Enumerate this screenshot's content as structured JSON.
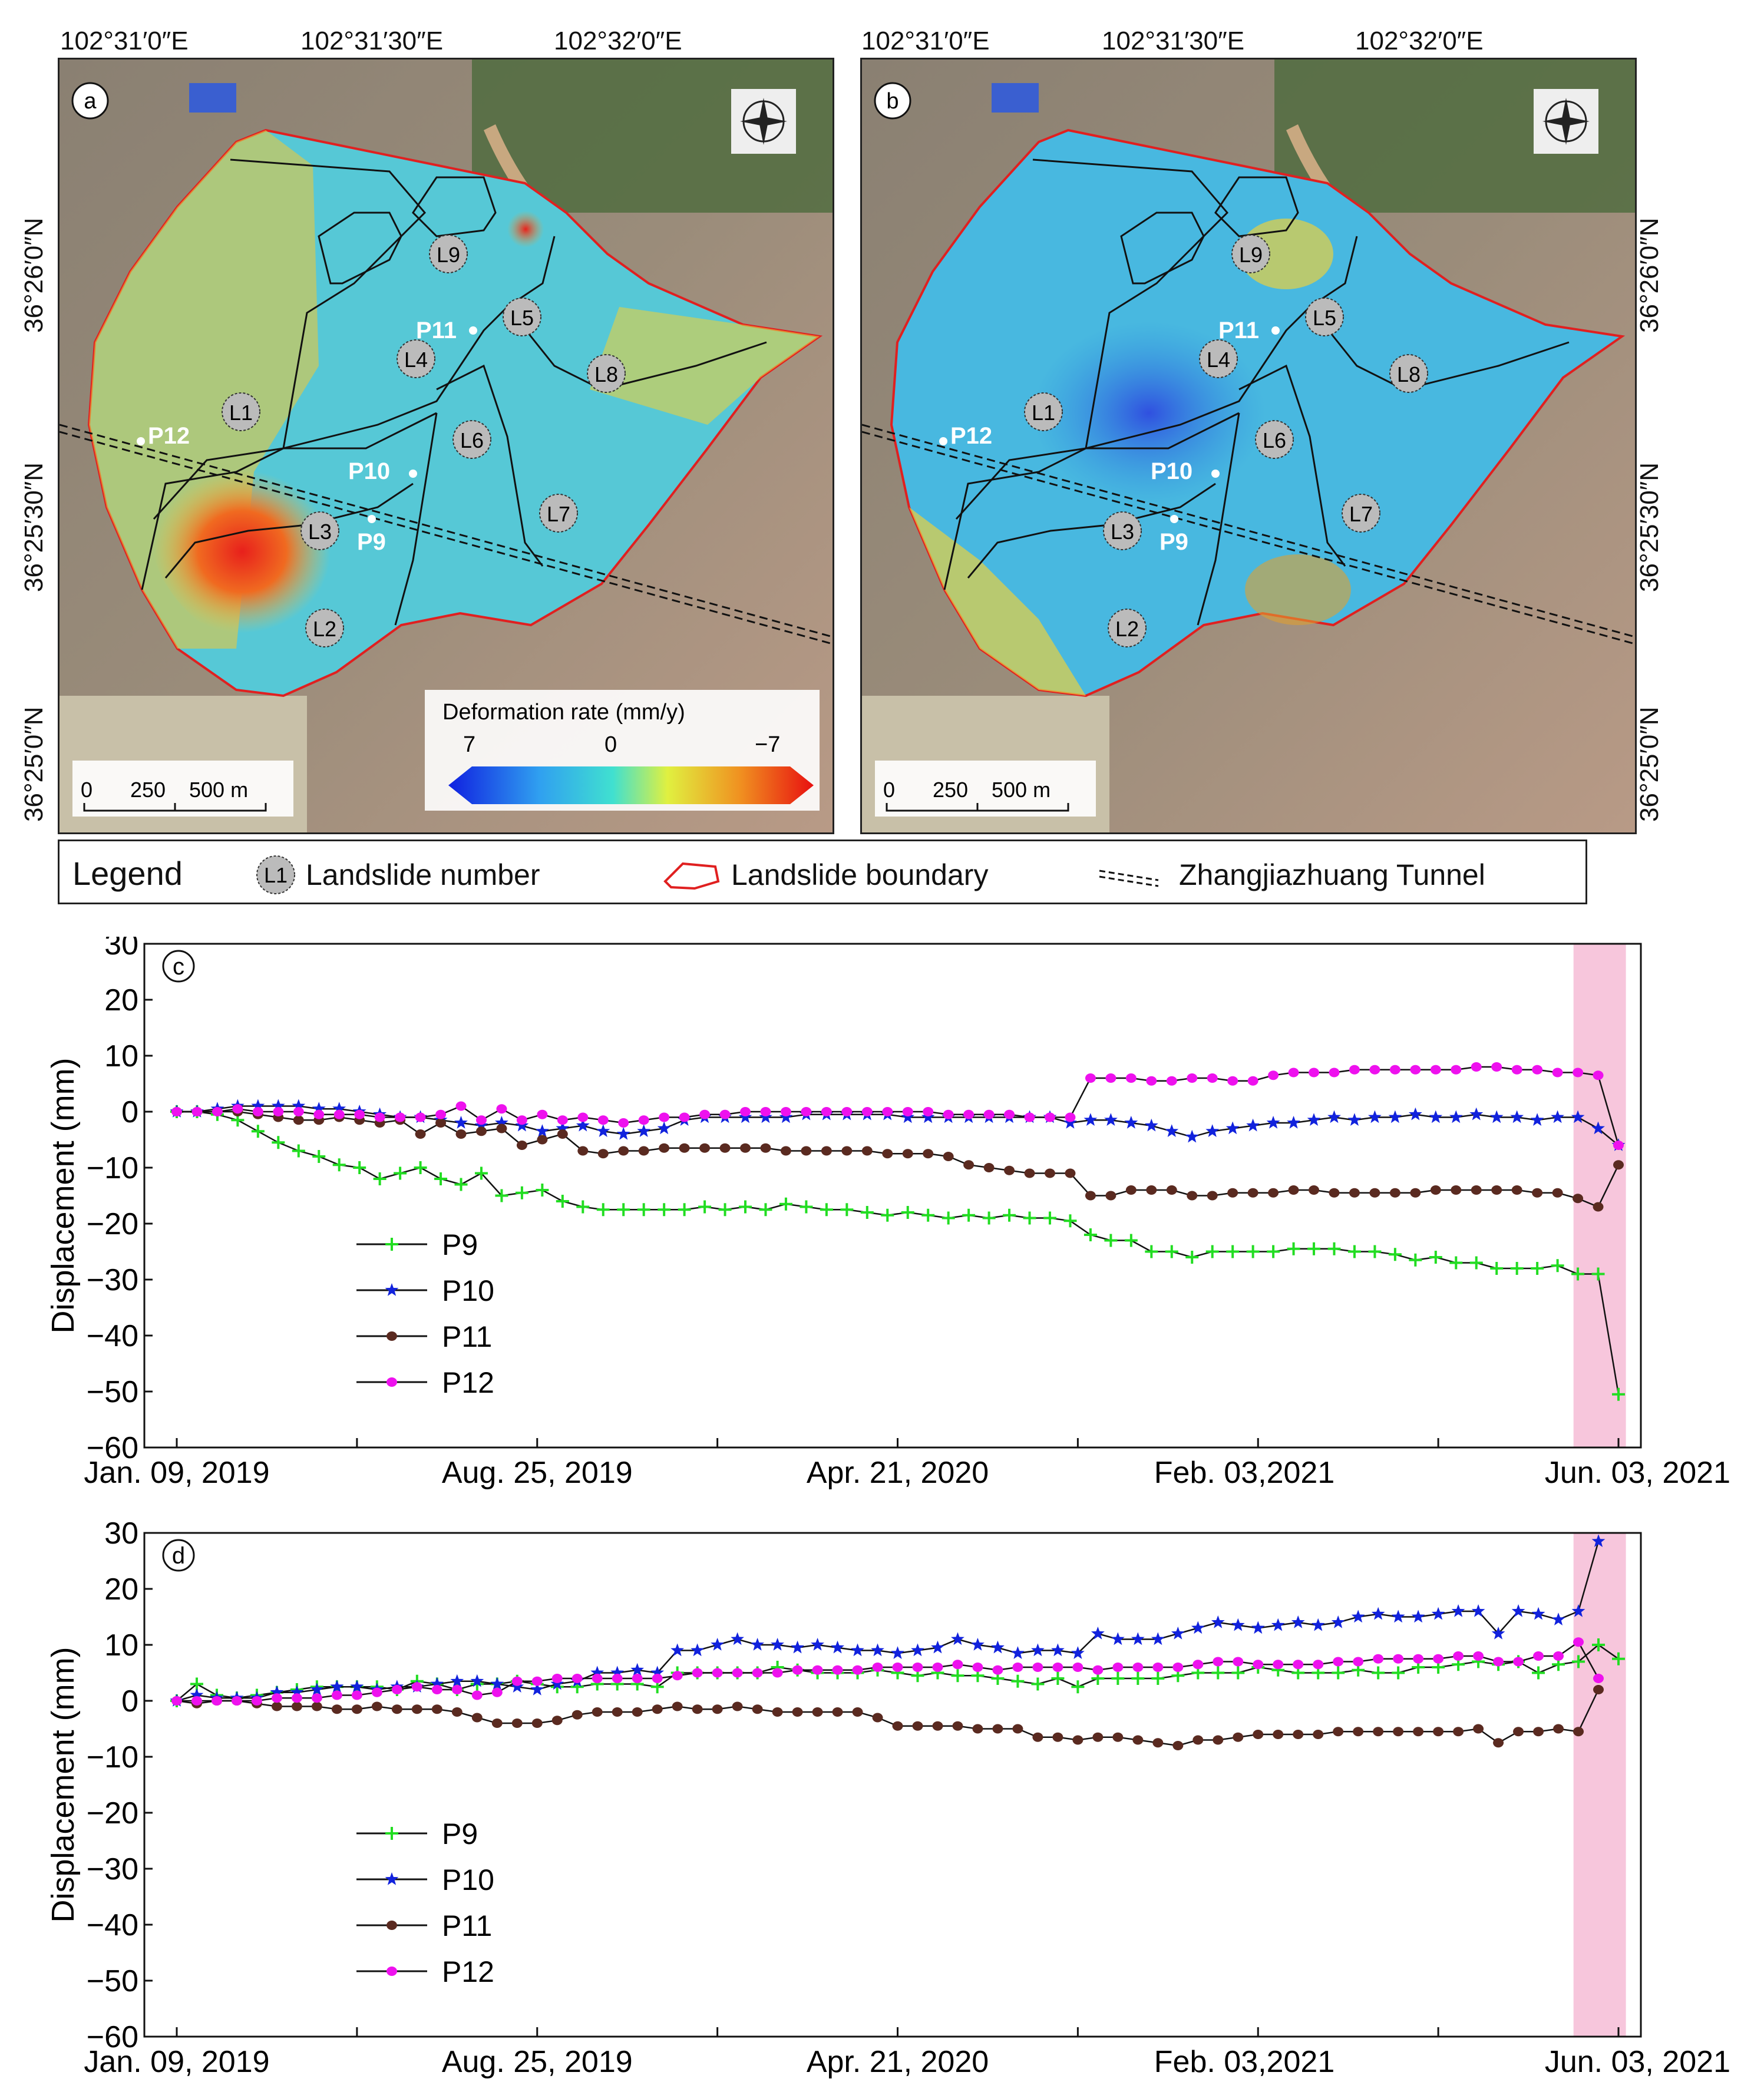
{
  "maps": {
    "top_coords": [
      "102°31′0″E",
      "102°31′30″E",
      "102°32′0″E"
    ],
    "side_coords": [
      "36°26′0″N",
      "36°25′30″N",
      "36°25′0″N"
    ],
    "panel_a": {
      "label": "a",
      "landslides": [
        "L1",
        "L2",
        "L3",
        "L4",
        "L5",
        "L6",
        "L7",
        "L8",
        "L9"
      ],
      "points": [
        "P9",
        "P10",
        "P11",
        "P12"
      ]
    },
    "panel_b": {
      "label": "b",
      "landslides": [
        "L1",
        "L2",
        "L3",
        "L4",
        "L5",
        "L6",
        "L7",
        "L8",
        "L9"
      ],
      "points": [
        "P9",
        "P10",
        "P11",
        "P12"
      ]
    },
    "scale_bar": [
      "0",
      "250",
      "500 m"
    ],
    "colorbar": {
      "title": "Deformation rate  (mm/y)",
      "ticks": [
        "7",
        "0",
        "−7"
      ]
    }
  },
  "legend": {
    "title": "Legend",
    "landslide_symbol": "L1",
    "landslide_number": "Landslide number",
    "landslide_boundary": "Landslide boundary",
    "tunnel": "Zhangjiazhuang Tunnel"
  },
  "chart_data": [
    {
      "type": "line",
      "label": "c",
      "ylabel": "Displacement (mm)",
      "xlabel": "",
      "ylim": [
        -60,
        30
      ],
      "yticks": [
        "30",
        "20",
        "10",
        "0",
        "−10",
        "−20",
        "−30",
        "−40",
        "−50",
        "−60"
      ],
      "xtick_labels": [
        "Jan. 09, 2019",
        "Aug. 25, 2019",
        "Apr. 21, 2020",
        "Feb. 03,2021",
        "Jun. 03, 2021"
      ],
      "highlight": {
        "from": 0.955,
        "to": 0.99,
        "color": "#f7c6dc"
      },
      "series": [
        {
          "name": "P9",
          "color": "#22dd22",
          "marker": "plus",
          "values": [
            0,
            0,
            -0.5,
            -1.5,
            -3.5,
            -5.5,
            -7,
            -8,
            -9.5,
            -10,
            -12,
            -11,
            -10,
            -12,
            -13,
            -11,
            -15,
            -14.5,
            -14,
            -16,
            -17,
            -17.5,
            -17.5,
            -17.5,
            -17.5,
            -17.5,
            -17,
            -17.5,
            -17,
            -17.5,
            -16.5,
            -17,
            -17.5,
            -17.5,
            -18,
            -18.5,
            -18,
            -18.5,
            -19,
            -18.5,
            -19,
            -18.5,
            -19,
            -19,
            -19.5,
            -22,
            -23,
            -23,
            -25,
            -25,
            -26,
            -25,
            -25,
            -25,
            -25,
            -24.5,
            -24.5,
            -24.5,
            -25,
            -25,
            -25.5,
            -26.5,
            -26,
            -27,
            -27,
            -28,
            -28,
            -28,
            -27.5,
            -29,
            -29,
            -50.5
          ]
        },
        {
          "name": "P10",
          "color": "#1122dd",
          "marker": "star",
          "values": [
            0,
            0,
            0.5,
            1,
            1,
            1,
            1,
            0.5,
            0.5,
            0,
            -0.5,
            -1,
            -1,
            -1.5,
            -2,
            -2.5,
            -2,
            -2.5,
            -3.5,
            -3,
            -2.5,
            -3.5,
            -4,
            -3.5,
            -3,
            -1.5,
            -1,
            -1,
            -1,
            -1,
            -1,
            -0.5,
            -0.5,
            -0.5,
            -0.5,
            -0.5,
            -1,
            -1,
            -1,
            -1,
            -1,
            -1,
            -1,
            -1,
            -2,
            -1.5,
            -1.5,
            -2,
            -2.5,
            -3.5,
            -4.5,
            -3.5,
            -3,
            -2.5,
            -2,
            -2,
            -1.5,
            -1,
            -1.5,
            -1,
            -1,
            -0.5,
            -1,
            -1,
            -0.5,
            -1,
            -1,
            -1.5,
            -1,
            -1,
            -3,
            -6
          ]
        },
        {
          "name": "P11",
          "color": "#5a2a20",
          "marker": "circle",
          "values": [
            0,
            0,
            0,
            0,
            -0.5,
            -1,
            -1.5,
            -1.5,
            -1,
            -1.5,
            -2,
            -1.5,
            -4,
            -2,
            -4,
            -3.5,
            -3,
            -6,
            -5,
            -4,
            -7,
            -7.5,
            -7,
            -7,
            -6.5,
            -6.5,
            -6.5,
            -6.5,
            -6.5,
            -6.5,
            -7,
            -7,
            -7,
            -7,
            -7,
            -7.5,
            -7.5,
            -7.5,
            -8,
            -9.5,
            -10,
            -10.5,
            -11,
            -11,
            -11,
            -15,
            -15,
            -14,
            -14,
            -14,
            -15,
            -15,
            -14.5,
            -14.5,
            -14.5,
            -14,
            -14,
            -14.5,
            -14.5,
            -14.5,
            -14.5,
            -14.5,
            -14,
            -14,
            -14,
            -14,
            -14,
            -14.5,
            -14.5,
            -15.5,
            -17,
            -9.5
          ]
        },
        {
          "name": "P12",
          "color": "#ee11ee",
          "marker": "circle",
          "values": [
            0,
            0,
            0,
            0.5,
            0,
            0,
            0,
            -0.5,
            -0.5,
            -0.5,
            -1,
            -1,
            -1,
            -0.5,
            1,
            -1.5,
            0.5,
            -1.5,
            -0.5,
            -1.5,
            -1,
            -1.5,
            -2,
            -1.5,
            -1,
            -1,
            -0.5,
            -0.5,
            0,
            0,
            0,
            0,
            0,
            0,
            0,
            0,
            0,
            0,
            -0.5,
            -0.5,
            -0.5,
            -0.5,
            -1,
            -1,
            -1,
            6,
            6,
            6,
            5.5,
            5.5,
            6,
            6,
            5.5,
            5.5,
            6.5,
            7,
            7,
            7,
            7.5,
            7.5,
            7.5,
            7.5,
            7.5,
            7.5,
            8,
            8,
            7.5,
            7.5,
            7,
            7,
            6.5,
            -6
          ]
        }
      ]
    },
    {
      "type": "line",
      "label": "d",
      "ylabel": "Displacement (mm)",
      "xlabel": "",
      "ylim": [
        -60,
        30
      ],
      "yticks": [
        "30",
        "20",
        "10",
        "0",
        "−10",
        "−20",
        "−30",
        "−40",
        "−50",
        "−60"
      ],
      "xtick_labels": [
        "Jan. 09, 2019",
        "Aug. 25, 2019",
        "Apr. 21, 2020",
        "Feb. 03,2021",
        "Jun. 03, 2021"
      ],
      "highlight": {
        "from": 0.955,
        "to": 0.99,
        "color": "#f7c6dc"
      },
      "series": [
        {
          "name": "P9",
          "color": "#22dd22",
          "marker": "plus",
          "values": [
            0,
            3,
            1,
            0.5,
            1,
            1.5,
            2,
            2.5,
            2.5,
            2.5,
            2.5,
            2,
            3.5,
            3,
            2,
            3,
            3,
            3.5,
            3,
            2.5,
            2.5,
            3,
            3,
            3,
            2.5,
            5,
            5,
            5,
            5,
            5,
            6,
            5.5,
            5,
            5,
            5,
            5.5,
            5,
            4.5,
            5,
            4.5,
            4.5,
            4,
            3.5,
            3,
            4,
            2.5,
            4,
            4,
            4,
            4,
            4.5,
            5,
            5,
            5,
            6,
            5.5,
            5,
            5,
            5,
            5.5,
            5,
            5,
            6,
            6,
            6.5,
            7,
            6.5,
            7,
            5,
            6.5,
            7,
            10,
            7.5
          ]
        },
        {
          "name": "P10",
          "color": "#1122dd",
          "marker": "star",
          "values": [
            0,
            1,
            0.5,
            0.5,
            0.5,
            1.5,
            1.5,
            2,
            2.5,
            2.5,
            2,
            2.5,
            2.5,
            3,
            3.5,
            3.5,
            3,
            2.5,
            2,
            3,
            3.5,
            5,
            5,
            5.5,
            5,
            9,
            9,
            10,
            11,
            10,
            10,
            9.5,
            10,
            9.5,
            9,
            9,
            8.5,
            9,
            9.5,
            11,
            10,
            9.5,
            8.5,
            9,
            9,
            8.5,
            12,
            11,
            11,
            11,
            12,
            13,
            14,
            13.5,
            13,
            13.5,
            14,
            13.5,
            14,
            15,
            15.5,
            15,
            15,
            15.5,
            16,
            16,
            12,
            16,
            15.5,
            14.5,
            16,
            28.5
          ]
        },
        {
          "name": "P11",
          "color": "#5a2a20",
          "marker": "circle",
          "values": [
            0,
            -0.5,
            0,
            0,
            -0.5,
            -1,
            -1,
            -1,
            -1.5,
            -1.5,
            -1,
            -1.5,
            -1.5,
            -1.5,
            -2,
            -3,
            -4,
            -4,
            -4,
            -3.5,
            -2.5,
            -2,
            -2,
            -2,
            -1.5,
            -1,
            -1.5,
            -1.5,
            -1,
            -1.5,
            -2,
            -2,
            -2,
            -2,
            -2,
            -3,
            -4.5,
            -4.5,
            -4.5,
            -4.5,
            -5,
            -5,
            -5,
            -6.5,
            -6.5,
            -7,
            -6.5,
            -6.5,
            -7,
            -7.5,
            -8,
            -7,
            -7,
            -6.5,
            -6,
            -6,
            -6,
            -6,
            -5.5,
            -5.5,
            -5.5,
            -5.5,
            -5.5,
            -5.5,
            -5.5,
            -5,
            -7.5,
            -5.5,
            -5.5,
            -5,
            -5.5,
            2
          ]
        },
        {
          "name": "P12",
          "color": "#ee11ee",
          "marker": "circle",
          "values": [
            0,
            0,
            0,
            0,
            0,
            0.5,
            0.5,
            0.5,
            1,
            1,
            1.5,
            2,
            2.5,
            2,
            2,
            1,
            1.5,
            3.5,
            3.5,
            4,
            4,
            4,
            4,
            4,
            4,
            4.5,
            5,
            5,
            5,
            5,
            5,
            5.5,
            5.5,
            5.5,
            5.5,
            6,
            6,
            6,
            6,
            6.5,
            6,
            5.5,
            6,
            6,
            6,
            6,
            5.5,
            6,
            6,
            6,
            6,
            6.5,
            7,
            7,
            6.5,
            6.5,
            6.5,
            6.5,
            7,
            7,
            7.5,
            7.5,
            7.5,
            7.5,
            8,
            8,
            7,
            7,
            8,
            8,
            10.5,
            4
          ]
        }
      ]
    }
  ]
}
